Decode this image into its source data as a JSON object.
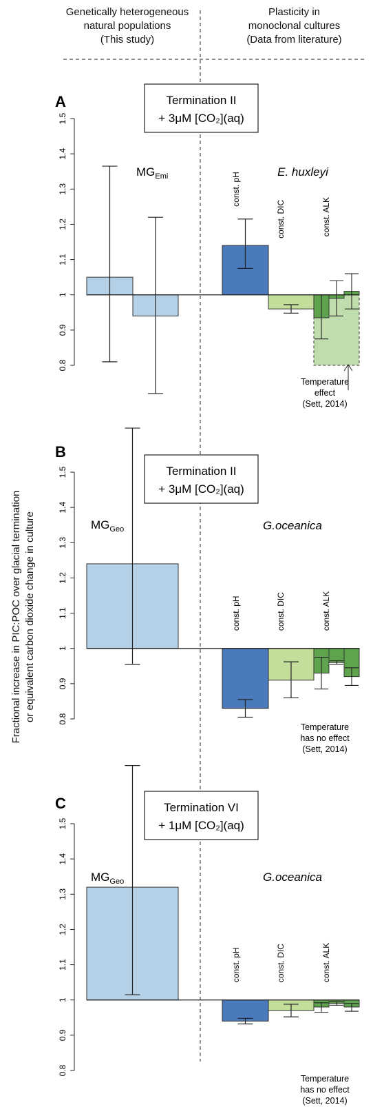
{
  "header": {
    "left_lines": [
      "Genetically heterogeneous",
      "natural populations",
      "(This study)"
    ],
    "right_lines": [
      "Plasticity in",
      "monoclonal cultures",
      "(Data from literature)"
    ]
  },
  "y_axis_title_lines": [
    "Fractional increase in PIC:POC over glacial termination",
    "or equivalent carbon dioxide change in culture"
  ],
  "colors": {
    "study_bar": "#b5d1e7",
    "const_ph": "#4a7abb",
    "const_dic": "#c2de9a",
    "const_alk": "#5fa34e",
    "temperature_box": "#a9d191"
  },
  "chart_data": [
    {
      "type": "bar",
      "panel": "A",
      "title_lines": [
        "Termination II",
        "+ 3μM [CO₂](aq)"
      ],
      "ylim": [
        0.8,
        1.5
      ],
      "yticks": [
        "0.8",
        "0.9",
        "1",
        "1.1",
        "1.2",
        "1.3",
        "1.4",
        "1.5"
      ],
      "baseline": 1.0,
      "study_label": {
        "main": "MG",
        "sub": "Emi"
      },
      "species_label": "E. huxleyi",
      "study_bars": [
        {
          "value": 1.05,
          "err_low": 0.81,
          "err_high": 1.365
        },
        {
          "value": 0.94,
          "err_low": 0.72,
          "err_high": 1.22
        }
      ],
      "culture_groups": [
        {
          "label": "const. pH",
          "value": 1.14,
          "err_low": 1.075,
          "err_high": 1.215,
          "sub": []
        },
        {
          "label": "const. DIC",
          "value": 0.96,
          "err_low": 0.948,
          "err_high": 0.972,
          "sub": []
        },
        {
          "label": "const. ALK",
          "value": null,
          "sub": [
            {
              "value": 0.935,
              "err_low": 0.875,
              "err_high": 1.0
            },
            {
              "value": 0.99,
              "err_low": 0.94,
              "err_high": 1.04
            },
            {
              "value": 1.01,
              "err_low": 0.96,
              "err_high": 1.06
            }
          ]
        }
      ],
      "temperature_effect": {
        "value": 0.8
      },
      "temperature_note_lines": [
        "Temperature",
        "effect",
        "(Sett, 2014)"
      ]
    },
    {
      "type": "bar",
      "panel": "B",
      "title_lines": [
        "Termination II",
        "+ 3μM [CO₂](aq)"
      ],
      "ylim": [
        0.8,
        1.5
      ],
      "yticks": [
        "0.8",
        "0.9",
        "1",
        "1.1",
        "1.2",
        "1.3",
        "1.4",
        "1.5"
      ],
      "baseline": 1.0,
      "study_label": {
        "main": "MG",
        "sub": "Geo"
      },
      "species_label": "G.oceanica",
      "study_bars": [
        {
          "value": 1.24,
          "err_low": 0.955,
          "err_high": 1.625
        }
      ],
      "culture_groups": [
        {
          "label": "const. pH",
          "value": 0.83,
          "err_low": 0.805,
          "err_high": 0.855,
          "sub": []
        },
        {
          "label": "const. DIC",
          "value": 0.91,
          "err_low": 0.86,
          "err_high": 0.962,
          "sub": []
        },
        {
          "label": "const. ALK",
          "value": null,
          "sub": [
            {
              "value": 0.93,
              "err_low": 0.885,
              "err_high": 0.975
            },
            {
              "value": 0.96,
              "err_low": 0.955,
              "err_high": 0.965
            },
            {
              "value": 0.92,
              "err_low": 0.895,
              "err_high": 0.945
            }
          ]
        }
      ],
      "temperature_effect": null,
      "temperature_note_lines": [
        "Temperature",
        "has no effect",
        "(Sett, 2014)"
      ]
    },
    {
      "type": "bar",
      "panel": "C",
      "title_lines": [
        "Termination VI",
        "+ 1μM [CO₂](aq)"
      ],
      "ylim": [
        0.8,
        1.5
      ],
      "yticks": [
        "0.8",
        "0.9",
        "1",
        "1.1",
        "1.2",
        "1.3",
        "1.4",
        "1.5"
      ],
      "baseline": 1.0,
      "study_label": {
        "main": "MG",
        "sub": "Geo"
      },
      "species_label": "G.oceanica",
      "study_bars": [
        {
          "value": 1.32,
          "err_low": 1.015,
          "err_high": 1.665
        }
      ],
      "culture_groups": [
        {
          "label": "const. pH",
          "value": 0.94,
          "err_low": 0.932,
          "err_high": 0.948,
          "sub": []
        },
        {
          "label": "const. DIC",
          "value": 0.97,
          "err_low": 0.952,
          "err_high": 0.988,
          "sub": []
        },
        {
          "label": "const. ALK",
          "value": null,
          "sub": [
            {
              "value": 0.98,
              "err_low": 0.965,
              "err_high": 0.992
            },
            {
              "value": 0.99,
              "err_low": 0.985,
              "err_high": 0.995
            },
            {
              "value": 0.98,
              "err_low": 0.968,
              "err_high": 0.99
            }
          ]
        }
      ],
      "temperature_effect": null,
      "temperature_note_lines": [
        "Temperature",
        "has no effect",
        "(Sett, 2014)"
      ]
    }
  ]
}
